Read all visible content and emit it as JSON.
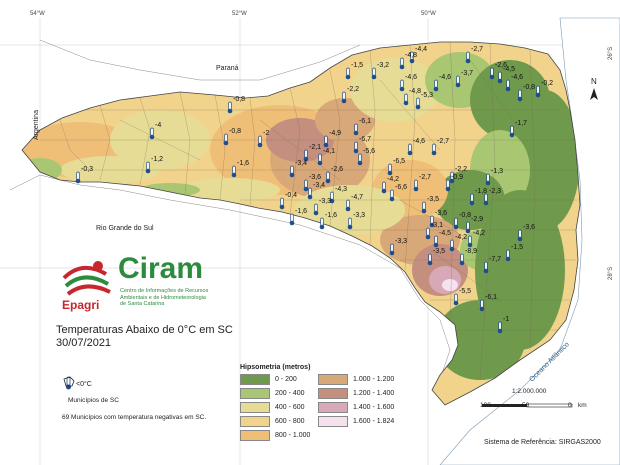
{
  "map": {
    "title_line1": "Temperaturas Abaixo de 0°C em SC",
    "title_line2": "30/07/2021",
    "graticule": {
      "top": [
        "54°W",
        "52°W",
        "50°W"
      ],
      "right": [
        "26°S",
        "28°S"
      ]
    },
    "places": {
      "parana": "Paraná",
      "argentina": "Argentina",
      "rs": "Rio Grande do Sul",
      "ocean": "Oceano Atlântico"
    },
    "temperatures": [
      "-4,4",
      "-2,7",
      "-1,5",
      "-3,2",
      "-4,8",
      "-4,6",
      "-2,6",
      "-3,7",
      "-4,6",
      "-4,5",
      "-0,2",
      "-4,8",
      "-4,6",
      "-0,8",
      "-5,3",
      "-2,2",
      "-0,8",
      "-4",
      "-0,8",
      "-2",
      "-6,1",
      "-1,7",
      "-6,7",
      "-4,9",
      "-1,2",
      "-0,3",
      "-4,6",
      "-2,7",
      "-1,6",
      "-2,1",
      "-4,1",
      "-5,6",
      "-2,6",
      "-3,6",
      "-3,4",
      "-6,5",
      "-2,2",
      "-0,9",
      "-1,3",
      "-6,6",
      "-2,7",
      "-3,4",
      "-4,2",
      "-1,8",
      "-2,3",
      "-4,3",
      "-3,3",
      "-0,4",
      "-4,7",
      "-1,6",
      "-3,3",
      "-3,5",
      "-3,6",
      "-0,8",
      "-4,2",
      "-2,9",
      "-1,6",
      "-3,1",
      "-3,6",
      "-4,5",
      "-3,3",
      "-4,2",
      "-3,5",
      "-8,9",
      "-1,5",
      "-7,7",
      "-5,5",
      "-6,1",
      "-1"
    ],
    "temp_legend_label": "<0°C",
    "municipios_label": "Municípios de SC",
    "note": "69 Municípios com temperatura negativas em SC.",
    "hypsometry_title": "Hipsometria (metros)",
    "hypsometry": [
      {
        "label": "0 - 200",
        "color": "#6f9a4c"
      },
      {
        "label": "1.000 - 1.200",
        "color": "#d9a878"
      },
      {
        "label": "200 - 400",
        "color": "#a9c772"
      },
      {
        "label": "1.200 - 1.400",
        "color": "#c48f7f"
      },
      {
        "label": "400 - 600",
        "color": "#e7dc95"
      },
      {
        "label": "1.400 - 1.600",
        "color": "#d7a9b6"
      },
      {
        "label": "600 - 800",
        "color": "#f1d38c"
      },
      {
        "label": "1.600 - 1.824",
        "color": "#f6e2ee"
      },
      {
        "label": "800 - 1.000",
        "color": "#efbf78"
      }
    ],
    "scale_text": "1:2.000.000",
    "scale_ticks": [
      "100",
      "50",
      "0",
      "km"
    ],
    "crs": "Sistema de Referência: SIRGAS2000",
    "north": "N"
  },
  "logo": {
    "name": "Ciram",
    "brand": "Epagri",
    "subtitle_lines": [
      "Centro de Informações de Recursos",
      "Ambientais e de Hidrometeorologia",
      "de Santa Catarina"
    ]
  }
}
